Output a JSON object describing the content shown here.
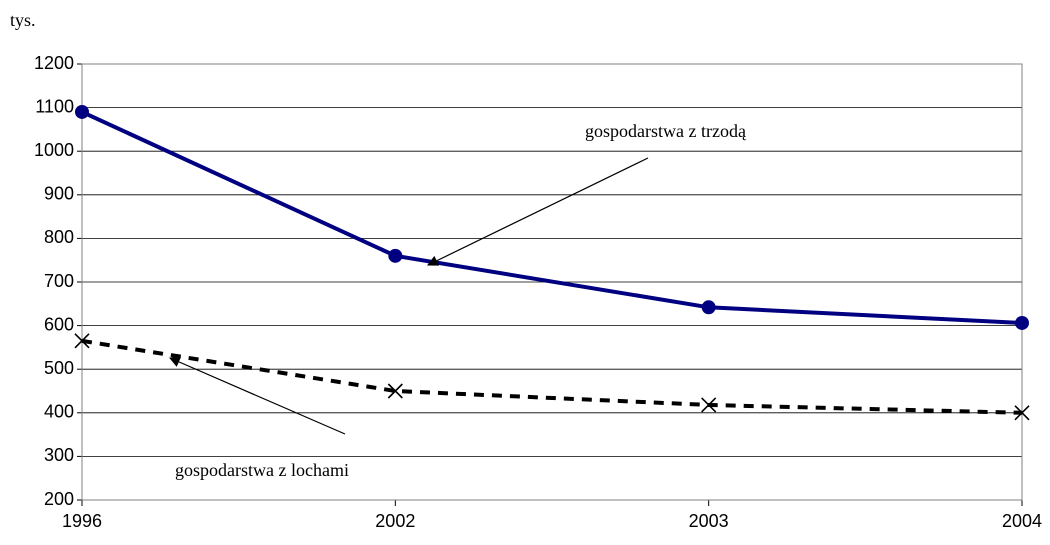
{
  "chart_data": {
    "type": "line",
    "y_label": "tys.",
    "categories": [
      "1996",
      "2002",
      "2003",
      "2004"
    ],
    "series": [
      {
        "name": "gospodarstwa z trzodą",
        "color": "#000080",
        "marker": "circle",
        "dashed": false,
        "values": [
          1090,
          760,
          642,
          606
        ]
      },
      {
        "name": "gospodarstwa z lochami",
        "color": "#000000",
        "marker": "x",
        "dashed": true,
        "values": [
          565,
          450,
          418,
          400
        ]
      }
    ],
    "ylim": [
      200,
      1200
    ],
    "yticks": [
      200,
      300,
      400,
      500,
      600,
      700,
      800,
      900,
      1000,
      1100,
      1200
    ],
    "grid": true
  }
}
